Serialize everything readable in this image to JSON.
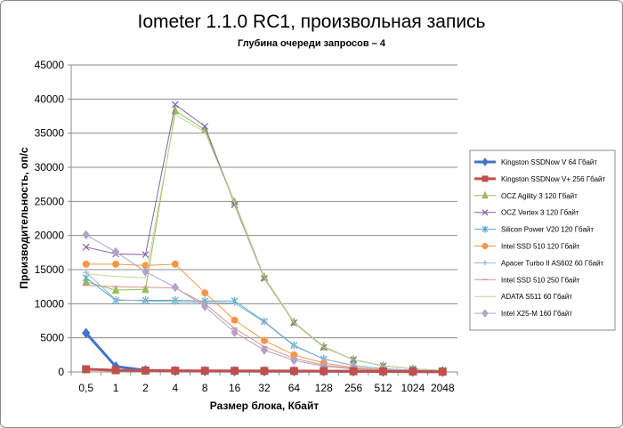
{
  "chart_data": {
    "type": "line",
    "title": "Iometer 1.1.0 RC1, произвольная запись",
    "subtitle": "Глубина очереди запросов – 4",
    "xlabel": "Размер блока, Кбайт",
    "ylabel": "Производительность, оп/с",
    "categories": [
      "0,5",
      "1",
      "2",
      "4",
      "8",
      "16",
      "32",
      "64",
      "128",
      "256",
      "512",
      "1024",
      "2048"
    ],
    "ylim": [
      0,
      45000
    ],
    "yticks": [
      0,
      5000,
      10000,
      15000,
      20000,
      25000,
      30000,
      35000,
      40000,
      45000
    ],
    "grid": true,
    "legend_position": "right",
    "series": [
      {
        "name": "Kingston SSDNow V 64 Гбайт",
        "color": "#4472c4",
        "marker": "diamond",
        "width": 3,
        "values": [
          5700,
          800,
          250,
          150,
          120,
          110,
          105,
          100,
          90,
          80,
          60,
          40,
          20
        ]
      },
      {
        "name": "Kingston SSDNow V+ 256 Гбайт",
        "color": "#c0504d",
        "marker": "square",
        "width": 3,
        "values": [
          400,
          250,
          200,
          180,
          170,
          160,
          150,
          140,
          120,
          100,
          80,
          60,
          30
        ]
      },
      {
        "name": "OCZ Agility 3 120 Гбайт",
        "color": "#9bbb59",
        "marker": "triangle",
        "width": 1,
        "values": [
          13200,
          12000,
          12100,
          38300,
          35500,
          24900,
          13900,
          7300,
          3700,
          1800,
          900,
          450,
          220
        ]
      },
      {
        "name": "OCZ Vertex 3 120 Гбайт",
        "color": "#8064a2",
        "marker": "x",
        "width": 1,
        "values": [
          18300,
          17300,
          17200,
          39200,
          36000,
          24500,
          13700,
          7200,
          3600,
          1800,
          900,
          450,
          220
        ]
      },
      {
        "name": "Silicon Power V20 120 Гбайт",
        "color": "#4bacc6",
        "marker": "asterisk",
        "width": 1,
        "values": [
          13800,
          10500,
          10500,
          10500,
          10400,
          10400,
          7400,
          3900,
          1900,
          950,
          480,
          240,
          120
        ]
      },
      {
        "name": "Intel SSD 510 120 Гбайт",
        "color": "#f79646",
        "marker": "circle",
        "width": 1,
        "values": [
          15800,
          15800,
          15600,
          15800,
          11600,
          7600,
          4600,
          2500,
          1300,
          650,
          330,
          170,
          90
        ]
      },
      {
        "name": "Apacer Turbo II AS602 60 Гбайт",
        "color": "#95b3d7",
        "marker": "plus",
        "width": 1,
        "values": [
          14600,
          10600,
          10400,
          10300,
          10200,
          10100,
          7300,
          3800,
          1900,
          950,
          480,
          240,
          120
        ]
      },
      {
        "name": "Intel SSD 510 250 Гбайт",
        "color": "#d99594",
        "marker": "dash",
        "width": 1,
        "values": [
          12700,
          12500,
          12400,
          12300,
          10000,
          6400,
          3700,
          2000,
          1000,
          520,
          260,
          130,
          70
        ]
      },
      {
        "name": "ADATA S511 60 Гбайт",
        "color": "#c3d69b",
        "marker": "none",
        "width": 1,
        "values": [
          14400,
          14000,
          13800,
          37700,
          35200,
          24700,
          13800,
          7200,
          3600,
          1800,
          900,
          450,
          220
        ]
      },
      {
        "name": "Intel X25-M 160 Гбайт",
        "color": "#b2a2c7",
        "marker": "diamond",
        "width": 1,
        "values": [
          20100,
          17600,
          14700,
          12400,
          9600,
          5800,
          3200,
          1700,
          850,
          430,
          220,
          110,
          60
        ]
      }
    ]
  }
}
